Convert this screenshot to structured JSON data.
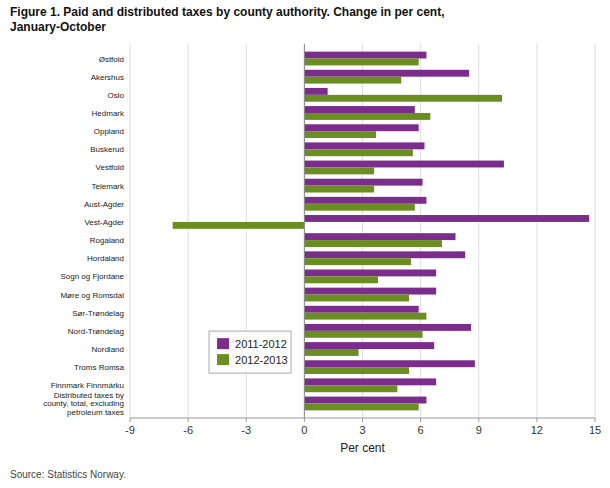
{
  "chart_data": {
    "type": "bar",
    "orientation": "horizontal",
    "title": "Figure 1. Paid and distributed taxes by county authority. Change in per cent,\nJanuary-October",
    "source": "Source: Statistics Norway.",
    "xlabel": "Per cent",
    "categories": [
      "Østfold",
      "Akershus",
      "Oslo",
      "Hedmark",
      "Oppland",
      "Buskerud",
      "Vestfold",
      "Telemark",
      "Aust-Agder",
      "Vest-Agder",
      "Rogaland",
      "Hordaland",
      "Sogn og Fjordane",
      "Møre og Romsdal",
      "Sør-Trøndelag",
      "Nord-Trøndelag",
      "Nordland",
      "Troms Romsa",
      "Finnmark Finnmárku",
      "Distributed taxes by\ncounty, total, excluding\npetroleum taxes"
    ],
    "series": [
      {
        "name": "2011-2012",
        "color": "#7B2D8B",
        "values": [
          6.3,
          8.5,
          1.2,
          5.7,
          5.9,
          6.2,
          10.3,
          6.1,
          6.3,
          14.7,
          7.8,
          8.3,
          6.8,
          6.8,
          5.9,
          8.6,
          6.7,
          8.8,
          6.8,
          6.3
        ]
      },
      {
        "name": "2012-2013",
        "color": "#6B8E23",
        "values": [
          5.9,
          5.0,
          10.2,
          6.5,
          3.7,
          5.6,
          3.6,
          3.6,
          5.7,
          -6.8,
          7.1,
          5.5,
          3.8,
          5.4,
          6.3,
          6.1,
          2.8,
          5.4,
          4.8,
          5.9
        ]
      }
    ],
    "xlim": [
      -9,
      15
    ],
    "xticks": [
      -9,
      -6,
      -3,
      0,
      3,
      6,
      9,
      12,
      15
    ],
    "grid": true,
    "legend": "lower left"
  }
}
